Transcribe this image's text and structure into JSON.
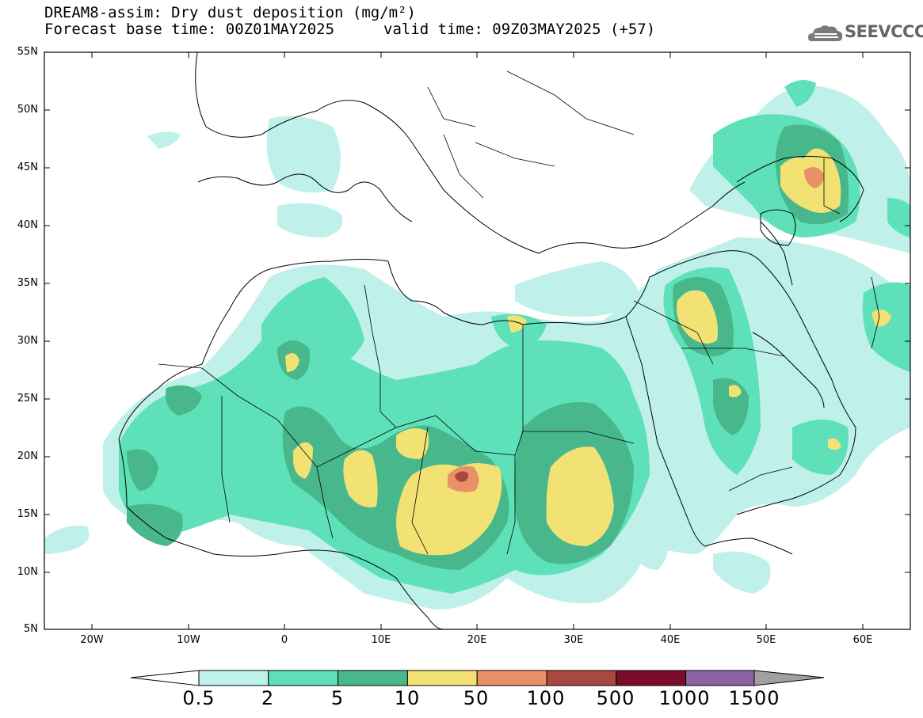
{
  "header": {
    "title": "DREAM8-assim: Dry dust deposition (mg/m²)",
    "base_time": "Forecast base time: 00Z01MAY2025",
    "valid_time": "valid time: 09Z03MAY2025 (+57)",
    "logo_text": "SEEVCCC",
    "logo_icon": "cloud-logo-icon"
  },
  "axes": {
    "lat_labels": [
      "55N",
      "50N",
      "45N",
      "40N",
      "35N",
      "30N",
      "25N",
      "20N",
      "15N",
      "10N",
      "5N"
    ],
    "lon_labels": [
      "20W",
      "10W",
      "0",
      "10E",
      "20E",
      "30E",
      "40E",
      "50E",
      "60E"
    ]
  },
  "colorbar": {
    "labels": [
      "0.5",
      "2",
      "5",
      "10",
      "50",
      "100",
      "500",
      "1000",
      "1500"
    ],
    "colors": [
      "#bff0ea",
      "#5ee0b8",
      "#48b88c",
      "#f2e274",
      "#ea9068",
      "#a84840",
      "#7c0c2c",
      "#8c64a4",
      "#a0a0a0"
    ]
  },
  "colors": {
    "level1": "#bff0ea",
    "level2": "#5ee0b8",
    "level3": "#48b88c",
    "level4": "#f2e274",
    "level5": "#ea9068",
    "level6": "#a84840"
  }
}
